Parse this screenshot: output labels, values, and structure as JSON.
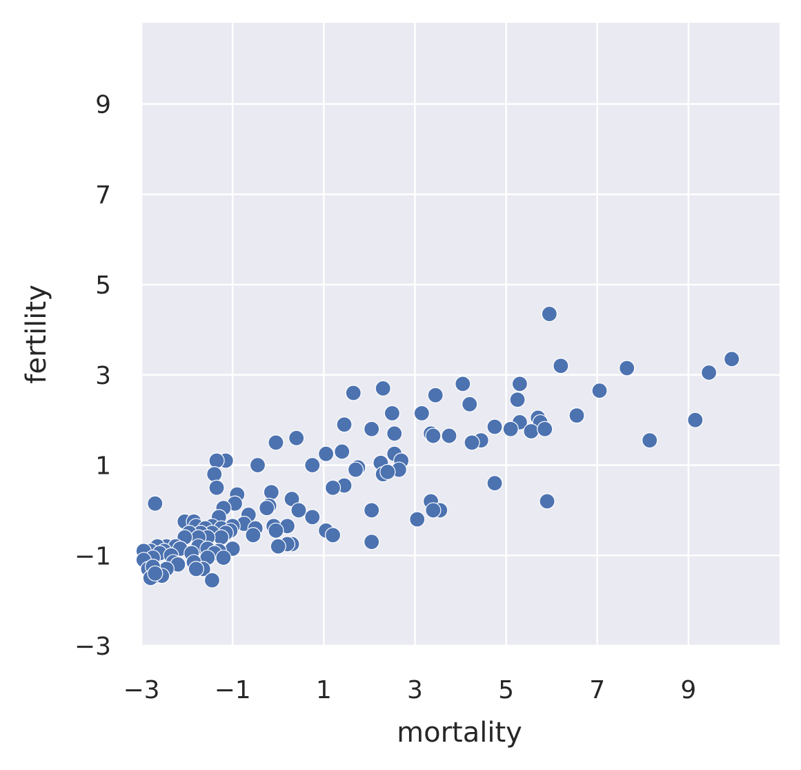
{
  "chart_data": {
    "type": "scatter",
    "xlabel": "mortality",
    "ylabel": "fertility",
    "xlim": [
      -3,
      11
    ],
    "ylim": [
      -3,
      10.8
    ],
    "x_ticks": [
      -3,
      -1,
      1,
      3,
      5,
      7,
      9
    ],
    "y_ticks": [
      -3,
      -1,
      1,
      3,
      5,
      7,
      9
    ],
    "x_tick_labels": [
      "−3",
      "−1",
      "1",
      "3",
      "5",
      "7",
      "9"
    ],
    "y_tick_labels": [
      "−3",
      "−1",
      "1",
      "3",
      "5",
      "7",
      "9"
    ],
    "grid": true,
    "background": "#eaeaf2",
    "marker_color": "#4c72b0",
    "points": [
      [
        5.95,
        4.35
      ],
      [
        9.95,
        3.35
      ],
      [
        9.45,
        3.05
      ],
      [
        6.2,
        3.2
      ],
      [
        7.65,
        3.15
      ],
      [
        7.05,
        2.65
      ],
      [
        5.3,
        2.8
      ],
      [
        4.05,
        2.8
      ],
      [
        2.3,
        2.7
      ],
      [
        1.65,
        2.6
      ],
      [
        3.45,
        2.55
      ],
      [
        5.25,
        2.45
      ],
      [
        4.2,
        2.35
      ],
      [
        2.5,
        2.15
      ],
      [
        3.15,
        2.15
      ],
      [
        6.55,
        2.1
      ],
      [
        5.7,
        2.05
      ],
      [
        9.15,
        2.0
      ],
      [
        5.3,
        1.95
      ],
      [
        5.75,
        1.95
      ],
      [
        1.45,
        1.9
      ],
      [
        4.75,
        1.85
      ],
      [
        5.1,
        1.8
      ],
      [
        5.55,
        1.75
      ],
      [
        5.85,
        1.8
      ],
      [
        2.05,
        1.8
      ],
      [
        2.55,
        1.7
      ],
      [
        3.35,
        1.7
      ],
      [
        3.4,
        1.65
      ],
      [
        3.75,
        1.65
      ],
      [
        0.4,
        1.6
      ],
      [
        4.45,
        1.55
      ],
      [
        4.25,
        1.5
      ],
      [
        8.15,
        1.55
      ],
      [
        -0.05,
        1.5
      ],
      [
        1.4,
        1.3
      ],
      [
        1.05,
        1.25
      ],
      [
        2.55,
        1.25
      ],
      [
        -1.15,
        1.1
      ],
      [
        -1.35,
        1.1
      ],
      [
        2.7,
        1.1
      ],
      [
        2.25,
        1.05
      ],
      [
        1.75,
        0.95
      ],
      [
        -0.45,
        1.0
      ],
      [
        0.75,
        1.0
      ],
      [
        1.7,
        0.9
      ],
      [
        2.65,
        0.9
      ],
      [
        2.3,
        0.8
      ],
      [
        2.4,
        0.85
      ],
      [
        -1.4,
        0.8
      ],
      [
        4.75,
        0.6
      ],
      [
        1.45,
        0.55
      ],
      [
        1.2,
        0.5
      ],
      [
        -1.35,
        0.5
      ],
      [
        -0.9,
        0.35
      ],
      [
        -0.15,
        0.4
      ],
      [
        0.3,
        0.25
      ],
      [
        5.9,
        0.2
      ],
      [
        3.35,
        0.2
      ],
      [
        -2.7,
        0.15
      ],
      [
        -0.95,
        0.15
      ],
      [
        -0.2,
        0.1
      ],
      [
        -0.25,
        0.05
      ],
      [
        -1.2,
        0.05
      ],
      [
        0.45,
        0.0
      ],
      [
        2.05,
        0.0
      ],
      [
        3.55,
        0.0
      ],
      [
        3.4,
        0.0
      ],
      [
        0.75,
        -0.15
      ],
      [
        3.05,
        -0.2
      ],
      [
        -0.65,
        -0.1
      ],
      [
        -1.3,
        -0.15
      ],
      [
        -2.05,
        -0.25
      ],
      [
        -1.85,
        -0.25
      ],
      [
        -0.75,
        -0.3
      ],
      [
        -1.0,
        -0.35
      ],
      [
        -1.45,
        -0.35
      ],
      [
        -0.1,
        -0.35
      ],
      [
        -1.8,
        -0.35
      ],
      [
        -1.6,
        -0.4
      ],
      [
        -1.25,
        -0.4
      ],
      [
        -0.5,
        -0.4
      ],
      [
        0.2,
        -0.35
      ],
      [
        1.05,
        -0.45
      ],
      [
        -0.05,
        -0.45
      ],
      [
        -1.05,
        -0.45
      ],
      [
        -1.15,
        -0.5
      ],
      [
        -1.45,
        -0.5
      ],
      [
        -1.7,
        -0.5
      ],
      [
        -1.95,
        -0.5
      ],
      [
        -0.55,
        -0.55
      ],
      [
        1.2,
        -0.55
      ],
      [
        -1.25,
        -0.6
      ],
      [
        -1.55,
        -0.6
      ],
      [
        -1.75,
        -0.6
      ],
      [
        -2.05,
        -0.6
      ],
      [
        2.05,
        -0.7
      ],
      [
        0.3,
        -0.75
      ],
      [
        0.2,
        -0.75
      ],
      [
        0.0,
        -0.8
      ],
      [
        -2.45,
        -0.8
      ],
      [
        -2.65,
        -0.8
      ],
      [
        -2.25,
        -0.8
      ],
      [
        -1.75,
        -0.8
      ],
      [
        -1.55,
        -0.85
      ],
      [
        -1.0,
        -0.85
      ],
      [
        -2.15,
        -0.85
      ],
      [
        -1.3,
        -0.9
      ],
      [
        -2.8,
        -0.9
      ],
      [
        -2.95,
        -0.9
      ],
      [
        -2.5,
        -0.9
      ],
      [
        -2.6,
        -0.95
      ],
      [
        -1.9,
        -0.95
      ],
      [
        -2.35,
        -1.0
      ],
      [
        -1.4,
        -0.95
      ],
      [
        -1.55,
        -1.05
      ],
      [
        -1.2,
        -1.05
      ],
      [
        -2.75,
        -1.05
      ],
      [
        -2.95,
        -1.1
      ],
      [
        -2.3,
        -1.15
      ],
      [
        -1.85,
        -1.15
      ],
      [
        -2.2,
        -1.2
      ],
      [
        -2.45,
        -1.3
      ],
      [
        -1.65,
        -1.3
      ],
      [
        -2.85,
        -1.3
      ],
      [
        -1.8,
        -1.3
      ],
      [
        -2.75,
        -1.25
      ],
      [
        -2.65,
        -1.45
      ],
      [
        -2.55,
        -1.45
      ],
      [
        -2.8,
        -1.5
      ],
      [
        -2.7,
        -1.4
      ],
      [
        -1.45,
        -1.55
      ]
    ]
  }
}
